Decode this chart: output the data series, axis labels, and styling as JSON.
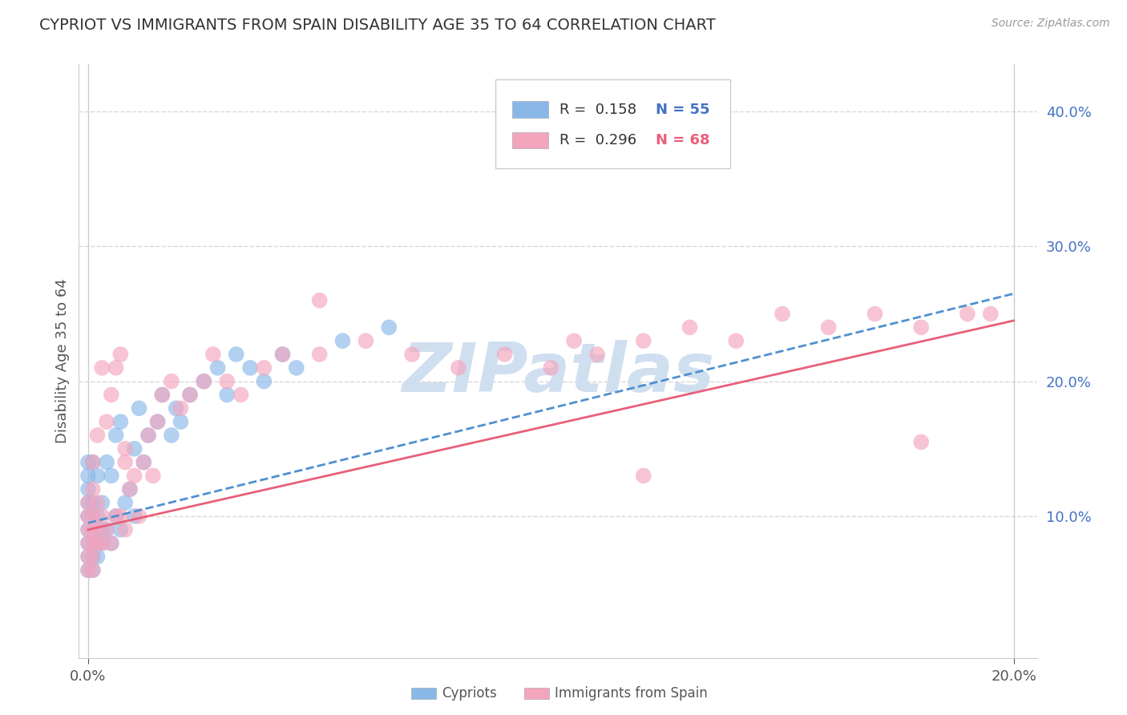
{
  "title": "CYPRIOT VS IMMIGRANTS FROM SPAIN DISABILITY AGE 35 TO 64 CORRELATION CHART",
  "source": "Source: ZipAtlas.com",
  "ylabel_label": "Disability Age 35 to 64",
  "xlim": [
    -0.002,
    0.205
  ],
  "ylim": [
    -0.005,
    0.435
  ],
  "x_ticks": [
    0.0,
    0.2
  ],
  "y_ticks": [
    0.1,
    0.2,
    0.3,
    0.4
  ],
  "cypriot_color": "#89b8e8",
  "spain_color": "#f4a5be",
  "cypriot_line_color": "#5090d0",
  "spain_line_color": "#e8607a",
  "background_color": "#ffffff",
  "grid_color": "#cccccc",
  "title_color": "#333333",
  "source_color": "#999999",
  "ylabel_color": "#555555",
  "xtick_color": "#555555",
  "ytick_color": "#4472c4",
  "watermark_color": "#d0dff0",
  "legend_R_color": "#333333",
  "legend_N_color": "#4472c4",
  "legend_N_spain_color": "#e8607a",
  "cypriot_x": [
    0.0,
    0.0,
    0.0,
    0.0,
    0.0,
    0.0,
    0.0,
    0.0,
    0.0,
    0.001,
    0.001,
    0.001,
    0.001,
    0.001,
    0.001,
    0.001,
    0.002,
    0.002,
    0.002,
    0.002,
    0.002,
    0.003,
    0.003,
    0.003,
    0.004,
    0.004,
    0.005,
    0.005,
    0.006,
    0.006,
    0.007,
    0.007,
    0.008,
    0.009,
    0.01,
    0.01,
    0.011,
    0.012,
    0.013,
    0.015,
    0.016,
    0.018,
    0.019,
    0.02,
    0.022,
    0.025,
    0.028,
    0.03,
    0.032,
    0.035,
    0.038,
    0.042,
    0.045,
    0.055,
    0.065
  ],
  "cypriot_y": [
    0.06,
    0.07,
    0.08,
    0.09,
    0.1,
    0.11,
    0.12,
    0.13,
    0.14,
    0.06,
    0.07,
    0.08,
    0.09,
    0.1,
    0.11,
    0.14,
    0.07,
    0.08,
    0.09,
    0.1,
    0.13,
    0.08,
    0.09,
    0.11,
    0.09,
    0.14,
    0.08,
    0.13,
    0.1,
    0.16,
    0.09,
    0.17,
    0.11,
    0.12,
    0.1,
    0.15,
    0.18,
    0.14,
    0.16,
    0.17,
    0.19,
    0.16,
    0.18,
    0.17,
    0.19,
    0.2,
    0.21,
    0.19,
    0.22,
    0.21,
    0.2,
    0.22,
    0.21,
    0.23,
    0.24
  ],
  "spain_x": [
    0.0,
    0.0,
    0.0,
    0.0,
    0.0,
    0.0,
    0.001,
    0.001,
    0.001,
    0.001,
    0.001,
    0.001,
    0.001,
    0.002,
    0.002,
    0.002,
    0.002,
    0.003,
    0.003,
    0.003,
    0.004,
    0.004,
    0.005,
    0.005,
    0.006,
    0.006,
    0.007,
    0.007,
    0.008,
    0.008,
    0.009,
    0.01,
    0.011,
    0.012,
    0.013,
    0.014,
    0.015,
    0.016,
    0.018,
    0.02,
    0.022,
    0.025,
    0.027,
    0.03,
    0.033,
    0.038,
    0.042,
    0.05,
    0.06,
    0.07,
    0.08,
    0.09,
    0.1,
    0.105,
    0.11,
    0.12,
    0.13,
    0.14,
    0.15,
    0.16,
    0.17,
    0.18,
    0.19,
    0.195,
    0.008,
    0.05,
    0.12,
    0.18
  ],
  "spain_y": [
    0.06,
    0.07,
    0.08,
    0.09,
    0.1,
    0.11,
    0.06,
    0.07,
    0.08,
    0.09,
    0.1,
    0.12,
    0.14,
    0.08,
    0.09,
    0.11,
    0.16,
    0.08,
    0.1,
    0.21,
    0.09,
    0.17,
    0.08,
    0.19,
    0.1,
    0.21,
    0.1,
    0.22,
    0.09,
    0.15,
    0.12,
    0.13,
    0.1,
    0.14,
    0.16,
    0.13,
    0.17,
    0.19,
    0.2,
    0.18,
    0.19,
    0.2,
    0.22,
    0.2,
    0.19,
    0.21,
    0.22,
    0.22,
    0.23,
    0.22,
    0.21,
    0.22,
    0.21,
    0.23,
    0.22,
    0.23,
    0.24,
    0.23,
    0.25,
    0.24,
    0.25,
    0.24,
    0.25,
    0.25,
    0.14,
    0.26,
    0.13,
    0.155
  ],
  "line_cyp_x0": 0.0,
  "line_cyp_x1": 0.2,
  "line_cyp_y0": 0.095,
  "line_cyp_y1": 0.265,
  "line_esp_x0": 0.0,
  "line_esp_x1": 0.2,
  "line_esp_y0": 0.09,
  "line_esp_y1": 0.245
}
